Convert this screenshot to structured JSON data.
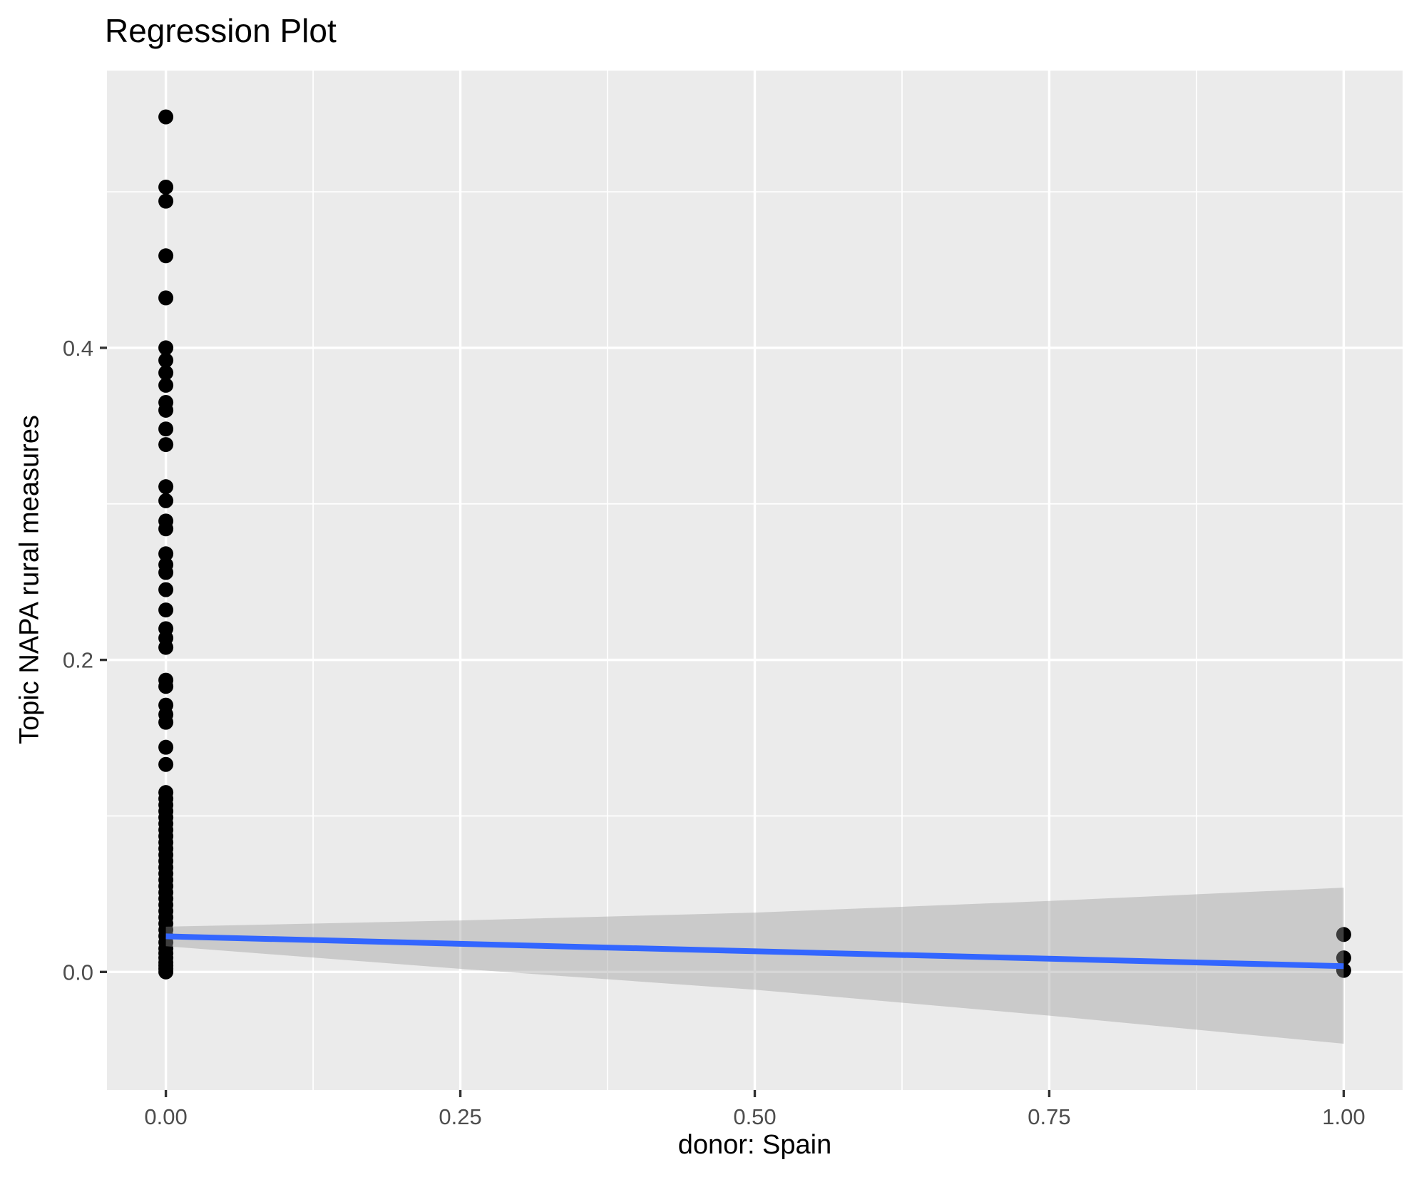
{
  "chart_data": {
    "type": "scatter",
    "title": "Regression Plot",
    "xlabel": "donor: Spain",
    "ylabel": "Topic NAPA rural measures",
    "xlim": [
      -0.05,
      1.05
    ],
    "ylim": [
      -0.0757,
      0.5777
    ],
    "grid": "on",
    "legend": "none",
    "x_tick_values": [
      0.0,
      0.25,
      0.5,
      0.75,
      1.0
    ],
    "x_tick_labels": [
      "0.00",
      "0.25",
      "0.50",
      "0.75",
      "1.00"
    ],
    "y_tick_values": [
      0.0,
      0.2,
      0.4
    ],
    "y_tick_labels": [
      "0.0",
      "0.2",
      "0.4"
    ],
    "x_minor_gridlines": [
      0.125,
      0.375,
      0.625,
      0.875
    ],
    "y_minor_gridlines": [
      0.1,
      0.3,
      0.5
    ],
    "series": [
      {
        "name": "points_at_x0",
        "x_value": 0,
        "y_values": [
          0.548,
          0.503,
          0.494,
          0.459,
          0.432,
          0.4,
          0.392,
          0.384,
          0.376,
          0.365,
          0.36,
          0.348,
          0.338,
          0.311,
          0.302,
          0.289,
          0.284,
          0.268,
          0.261,
          0.256,
          0.245,
          0.232,
          0.22,
          0.214,
          0.208,
          0.187,
          0.183,
          0.171,
          0.165,
          0.16,
          0.144,
          0.133,
          0.115,
          0.111,
          0.107,
          0.103,
          0.099,
          0.095,
          0.091,
          0.087,
          0.083,
          0.079,
          0.075,
          0.071,
          0.067,
          0.063,
          0.059,
          0.055,
          0.051,
          0.047,
          0.043,
          0.039,
          0.035,
          0.031,
          0.027,
          0.023,
          0.019,
          0.015,
          0.012,
          0.009,
          0.006,
          0.004,
          0.002,
          0.0
        ]
      },
      {
        "name": "points_at_x1",
        "x_value": 1,
        "y_values": [
          0.024,
          0.009,
          0.001
        ]
      }
    ],
    "regression_line": {
      "x": [
        0,
        1
      ],
      "y": [
        0.0228,
        0.0037
      ]
    },
    "confidence_band": {
      "x": [
        0,
        0.25,
        0.5,
        0.75,
        1
      ],
      "upper": [
        0.029,
        0.033,
        0.038,
        0.0455,
        0.054
      ],
      "lower": [
        0.0165,
        0.002,
        -0.0114,
        -0.028,
        -0.046
      ]
    },
    "colors": {
      "panel_background": "#EBEBEB",
      "gridline": "#FFFFFF",
      "point": "#000000",
      "regression_line": "#3366FF",
      "ribbon_fill": "#999999",
      "ribbon_alpha": 0.4,
      "axis_text": "#4D4D4D",
      "tick_mark": "#333333",
      "title_text": "#000000"
    }
  }
}
